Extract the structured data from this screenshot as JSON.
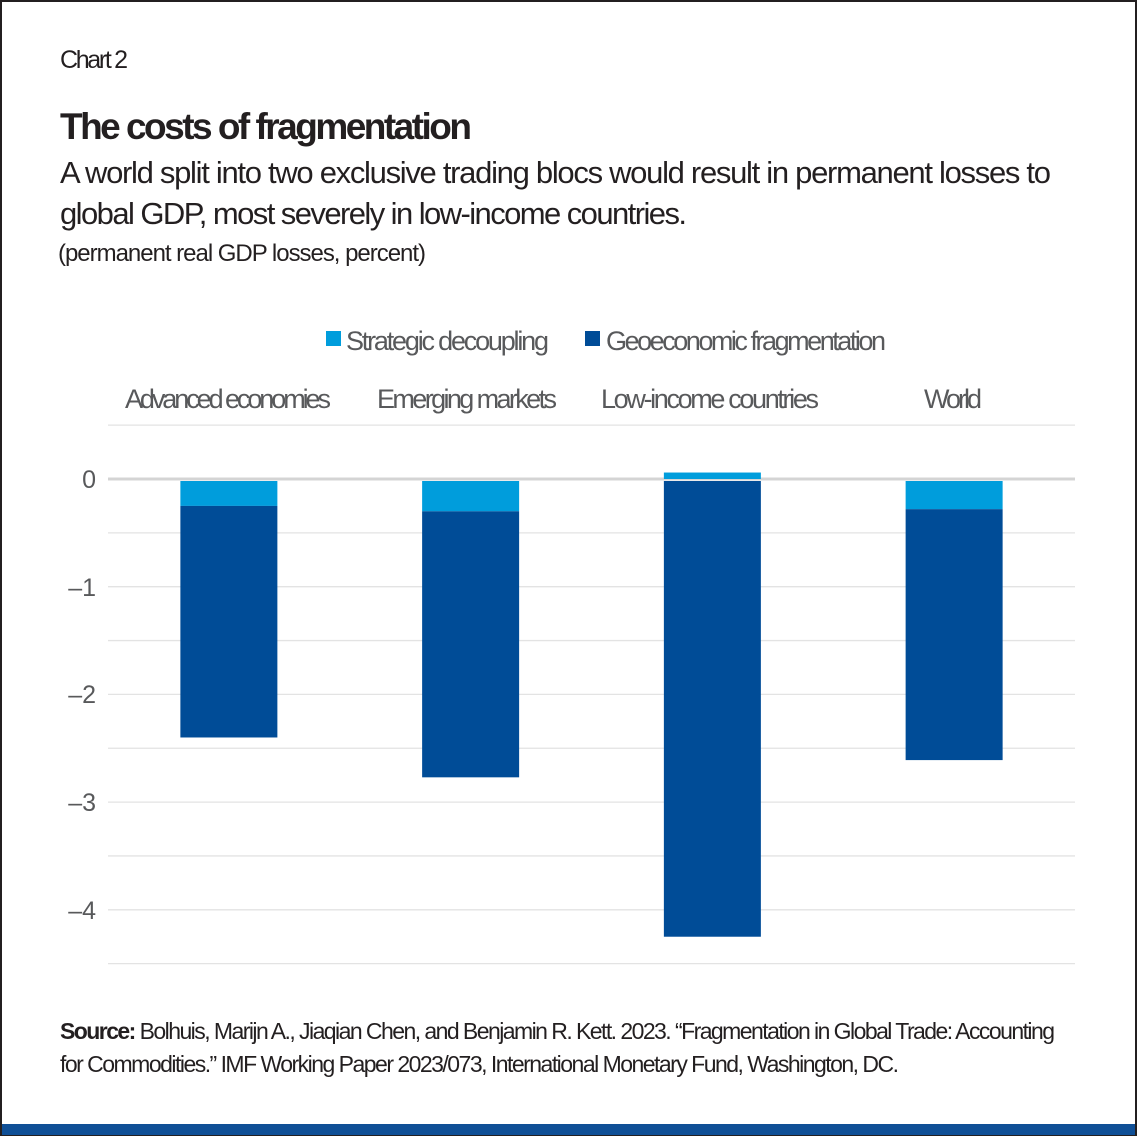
{
  "header": {
    "chart_number": "Chart 2",
    "title": "The costs of fragmentation",
    "subtitle_line1": "A world split into two exclusive trading blocs would result in permanent losses to",
    "subtitle_line2": "global GDP, most severely in low-income countries.",
    "units": "(permanent real GDP losses, percent)"
  },
  "source": {
    "label": "Source:",
    "line1": " Bolhuis, Marijn A., Jiaqian Chen, and Benjamin R. Kett. 2023. “Fragmentation in Global Trade: Accounting",
    "line2": "for Commodities.” IMF Working Paper 2023/073, International Monetary Fund, Washington, DC."
  },
  "colors": {
    "strategic": "#009ddc",
    "geoeconomic": "#004c97",
    "footer_bar": "#0f4f96"
  },
  "chart_data": {
    "type": "bar",
    "stacked": true,
    "categories": [
      "Advanced economies",
      "Emerging markets",
      "Low-income countries",
      "World"
    ],
    "series": [
      {
        "name": "Strategic decoupling",
        "values": [
          -0.25,
          -0.3,
          0.06,
          -0.28
        ]
      },
      {
        "name": "Geoeconomic fragmentation",
        "values": [
          -2.15,
          -2.47,
          -4.25,
          -2.33
        ]
      }
    ],
    "ylim": [
      -4.5,
      0.5
    ],
    "yticks": [
      0,
      -1,
      -2,
      -3,
      -4
    ],
    "ytick_labels": [
      "0",
      "–1",
      "–2",
      "–3",
      "–4"
    ],
    "grid": true,
    "legend_position": "top"
  }
}
